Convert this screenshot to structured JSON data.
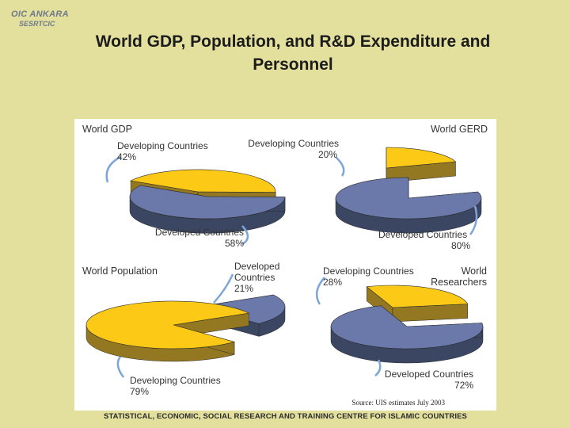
{
  "logo": {
    "line1": "OIC ANKARA",
    "line2": "SESRTCIC"
  },
  "slide": {
    "title_line1": "World GDP, Population, and R&D Expenditure and",
    "title_line2": "Personnel",
    "footer": "STATISTICAL, ECONOMIC, SOCIAL RESEARCH AND TRAINING CENTRE FOR ISLAMIC COUNTRIES",
    "source": "Source: UIS estimates July 2003"
  },
  "colors": {
    "developing_top": "#fcc917",
    "developing_side": "#937821",
    "developed_top": "#6a78aa",
    "developed_side": "#3b4662",
    "leader": "#7ea5d8"
  },
  "chart_data": [
    {
      "type": "pie",
      "title": "World GDP",
      "unit": "%",
      "slices": [
        {
          "name": "Developing Countries",
          "value": 42
        },
        {
          "name": "Developed Countries",
          "value": 58
        }
      ]
    },
    {
      "type": "pie",
      "title": "World GERD",
      "unit": "%",
      "slices": [
        {
          "name": "Developing Countries",
          "value": 20
        },
        {
          "name": "Developed Countries",
          "value": 80
        }
      ]
    },
    {
      "type": "pie",
      "title": "World Population",
      "unit": "%",
      "slices": [
        {
          "name": "Developed Countries",
          "value": 21
        },
        {
          "name": "Developing Countries",
          "value": 79
        }
      ]
    },
    {
      "type": "pie",
      "title": "World Researchers",
      "unit": "%",
      "slices": [
        {
          "name": "Developing Countries",
          "value": 28
        },
        {
          "name": "Developed Countries",
          "value": 72
        }
      ]
    }
  ]
}
